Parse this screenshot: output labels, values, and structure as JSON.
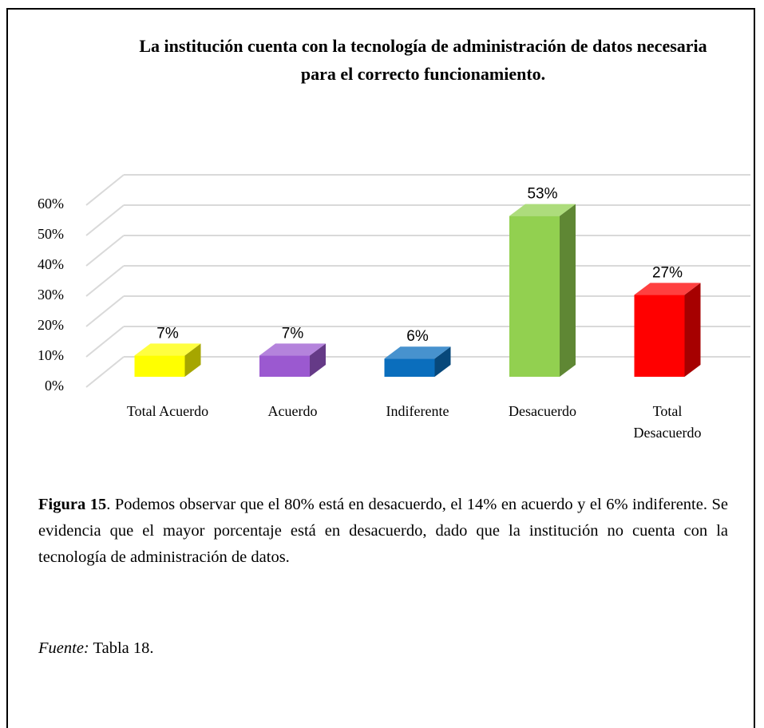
{
  "chart_data": {
    "type": "bar3d",
    "title": "La institución cuenta con la tecnología de administración de datos necesaria para el correcto funcionamiento.",
    "categories": [
      "Total Acuerdo",
      "Acuerdo",
      "Indiferente",
      "Desacuerdo",
      "Total Desacuerdo"
    ],
    "values": [
      7,
      7,
      6,
      53,
      27
    ],
    "value_labels": [
      "7%",
      "7%",
      "6%",
      "53%",
      "27%"
    ],
    "colors": [
      "#ffff00",
      "#9b59d0",
      "#0a6ebd",
      "#92d050",
      "#ff0000"
    ],
    "ylim": [
      0,
      60
    ],
    "yticks": [
      {
        "value": 0,
        "label": "0%"
      },
      {
        "value": 10,
        "label": "10%"
      },
      {
        "value": 20,
        "label": "20%"
      },
      {
        "value": 30,
        "label": "30%"
      },
      {
        "value": 40,
        "label": "40%"
      },
      {
        "value": 50,
        "label": "50%"
      },
      {
        "value": 60,
        "label": "60%"
      }
    ],
    "grid": true
  },
  "caption": {
    "label": "Figura 15",
    "text": ". Podemos observar que el 80% está en desacuerdo, el 14% en acuerdo y el 6% indiferente. Se evidencia que el mayor porcentaje está en desacuerdo, dado que la institución no cuenta con la tecnología de administración de datos."
  },
  "source": {
    "label": "Fuente:",
    "text": "Tabla 18."
  }
}
